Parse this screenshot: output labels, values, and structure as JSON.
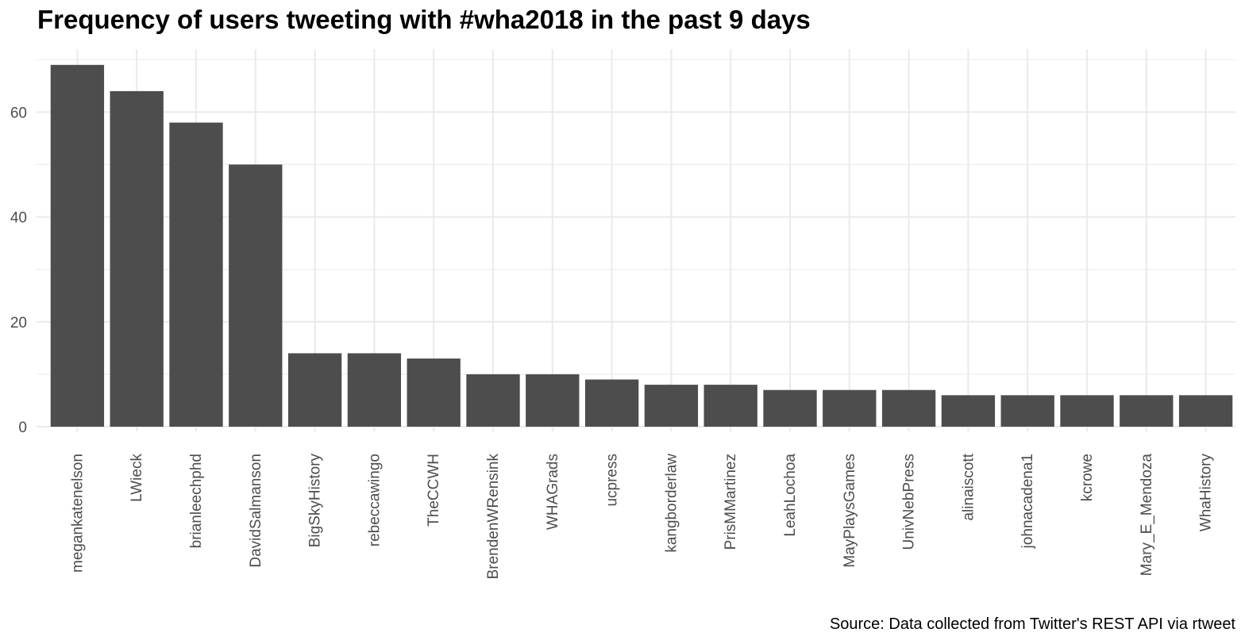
{
  "chart_data": {
    "type": "bar",
    "title": "Frequency of users tweeting with #wha2018 in the past 9 days",
    "caption": "Source: Data collected from Twitter's REST API via rtweet",
    "xlabel": "",
    "ylabel": "",
    "categories": [
      "megankatenelson",
      "LWieck",
      "brianleechphd",
      "DavidSalmanson",
      "BigSkyHistory",
      "rebeccawingo",
      "TheCCWH",
      "BrendenWRensink",
      "WHAGrads",
      "ucpress",
      "kangborderlaw",
      "PrisMMartinez",
      "LeahLochoa",
      "MayPlaysGames",
      "UnivNebPress",
      "alinaiscott",
      "johnacadena1",
      "kcrowe",
      "Mary_E_Mendoza",
      "WhaHistory"
    ],
    "values": [
      69,
      64,
      58,
      50,
      14,
      14,
      13,
      10,
      10,
      9,
      8,
      8,
      7,
      7,
      7,
      6,
      6,
      6,
      6,
      6
    ],
    "y_ticks": [
      "0",
      "20",
      "40",
      "60"
    ],
    "ylim": [
      0,
      72
    ],
    "grid": true,
    "bar_color": "#4d4d4d",
    "grid_color": "#ebebeb"
  }
}
